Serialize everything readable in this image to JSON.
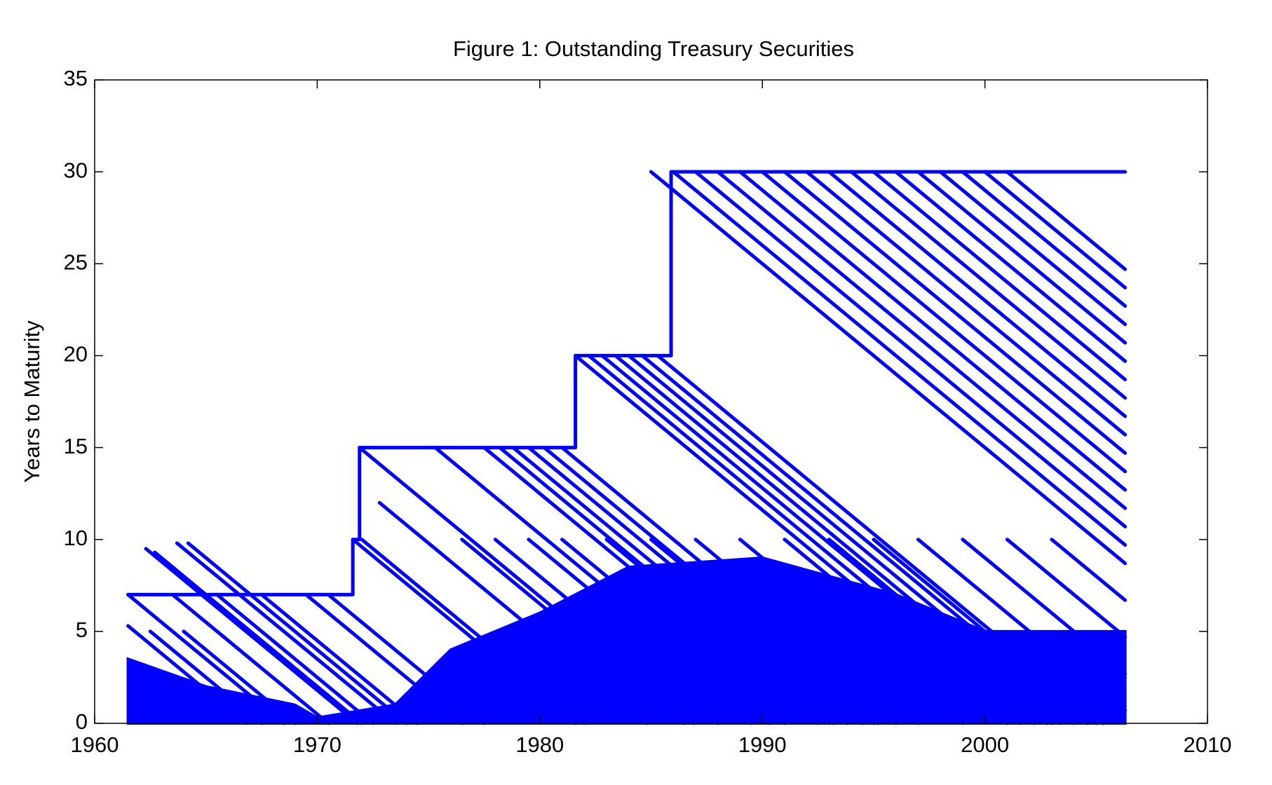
{
  "chart_data": {
    "type": "line",
    "title": "Figure 1: Outstanding Treasury Securities",
    "y_label": "Years to Maturity",
    "xlim": [
      1960,
      2010
    ],
    "xticks": [
      1960,
      1970,
      1980,
      1990,
      2000,
      2010
    ],
    "ylim": [
      0,
      35
    ],
    "yticks": [
      0,
      5,
      10,
      15,
      20,
      25,
      30,
      35
    ],
    "box": true,
    "series": [
      {
        "color": "#0000ff",
        "fill": true,
        "x": [
          1961.5,
          1965,
          1969,
          1970,
          1973.5,
          1976,
          1980,
          1984,
          1990,
          1996,
          2000,
          2006.3
        ],
        "values": [
          3.5,
          2,
          1,
          0.3,
          1,
          4,
          6,
          8.5,
          9,
          7,
          5,
          5
        ]
      },
      {
        "color": "#0000ff",
        "fill": false,
        "x": [
          1962.3,
          1971.8,
          null,
          1962.7,
          1972,
          null,
          1963.7,
          1973.5,
          null,
          1964.2,
          1974,
          null,
          1961.5,
          1968.5,
          null,
          1963.5,
          1970.5,
          null,
          1965.5,
          1972.5,
          null,
          1967.5,
          1974.5,
          null,
          1969.5,
          1976.5,
          null,
          1970.5,
          1977.5,
          null,
          1961.5,
          1966.8,
          null,
          1962.5,
          1967.5,
          null,
          1964,
          1969,
          null,
          1965.5,
          1970.5,
          null,
          1967,
          1972,
          null,
          1968.5,
          1973.5,
          null,
          1971.6,
          1981.6,
          null,
          1972,
          1982,
          null,
          1972.8,
          1984.8,
          null,
          1971.9,
          1986.9,
          null,
          1975.3,
          1990.3,
          null,
          1977.5,
          1992.5,
          null,
          1978.2,
          1993.2,
          null,
          1978.8,
          1993.8,
          null,
          1979.5,
          1994.5,
          null,
          1980.2,
          1995.2,
          null,
          1981,
          1996,
          null,
          1981.6,
          2001.6,
          null,
          1982.2,
          2002.2,
          null,
          1982.8,
          2002.8,
          null,
          1983.4,
          2003.4,
          null,
          1984,
          2004,
          null,
          1984.6,
          2004.6,
          null,
          1985.3,
          2005.3,
          null,
          1985,
          2006.3,
          null,
          1986,
          2006.3,
          null,
          1987,
          2006.3,
          null,
          1988,
          2006.3,
          null,
          1989,
          2006.3,
          null,
          1990,
          2006.3,
          null,
          1991,
          2006.3,
          null,
          1992,
          2006.3,
          null,
          1993,
          2006.3,
          null,
          1994,
          2006.3,
          null,
          1995,
          2006.3,
          null,
          1996,
          2006.3,
          null,
          1997,
          2006.3,
          null,
          1998,
          2006.3,
          null,
          1999,
          2006.3,
          null,
          2000,
          2006.3,
          null,
          2001,
          2006.3,
          null,
          1976.5,
          1986.5,
          null,
          1978,
          1988,
          null,
          1979.5,
          1989.5,
          null,
          1981,
          1991,
          null,
          1983,
          1993,
          null,
          1985,
          1995,
          null,
          1987,
          1997,
          null,
          1989,
          1999,
          null,
          1991,
          2001,
          null,
          1993,
          2003,
          null,
          1995,
          2005,
          null,
          1997,
          2006.3,
          null,
          1999,
          2006.3,
          null,
          2001,
          2006.3,
          null,
          2003,
          2006.3,
          null,
          2005,
          2006.3
        ],
        "values": [
          9.5,
          0,
          null,
          9.3,
          0,
          null,
          9.8,
          0,
          null,
          9.8,
          0,
          null,
          7,
          0,
          null,
          7,
          0,
          null,
          7,
          0,
          null,
          7,
          0,
          null,
          7,
          0,
          null,
          7,
          0,
          null,
          5.3,
          0,
          null,
          5,
          0,
          null,
          5,
          0,
          null,
          5,
          0,
          null,
          5,
          0,
          null,
          5,
          0,
          null,
          10,
          0,
          null,
          10,
          0,
          null,
          12,
          0,
          null,
          15,
          0,
          null,
          15,
          0,
          null,
          15,
          0,
          null,
          15,
          0,
          null,
          15,
          0,
          null,
          15,
          0,
          null,
          15,
          0,
          null,
          15,
          0,
          null,
          20,
          0,
          null,
          20,
          0,
          null,
          20,
          0,
          null,
          20,
          0,
          null,
          20,
          0,
          null,
          20,
          0,
          null,
          20,
          0,
          null,
          30,
          8.7,
          null,
          30,
          9.7,
          null,
          30,
          10.7,
          null,
          30,
          11.7,
          null,
          30,
          12.7,
          null,
          30,
          13.7,
          null,
          30,
          14.7,
          null,
          30,
          15.7,
          null,
          30,
          16.7,
          null,
          30,
          17.7,
          null,
          30,
          18.7,
          null,
          30,
          19.7,
          null,
          30,
          20.7,
          null,
          30,
          21.7,
          null,
          30,
          22.7,
          null,
          30,
          23.7,
          null,
          30,
          24.7,
          null,
          10,
          0,
          null,
          10,
          0,
          null,
          10,
          0,
          null,
          10,
          0,
          null,
          10,
          0,
          null,
          10,
          0,
          null,
          10,
          0,
          null,
          10,
          0,
          null,
          10,
          0,
          null,
          10,
          0,
          null,
          10,
          0,
          null,
          10,
          0.7,
          null,
          10,
          2.7,
          null,
          10,
          4.7,
          null,
          10,
          6.7,
          null,
          10,
          8.7
        ]
      },
      {
        "color": "#0000ff",
        "fill": false,
        "x": [
          1961.5,
          1971.6,
          1971.6,
          1971.9,
          1971.9,
          1981.6,
          1981.6,
          1985.9,
          1985.9,
          2006.3
        ],
        "values": [
          7,
          7,
          10,
          10,
          15,
          15,
          20,
          20,
          30,
          30
        ]
      }
    ]
  }
}
